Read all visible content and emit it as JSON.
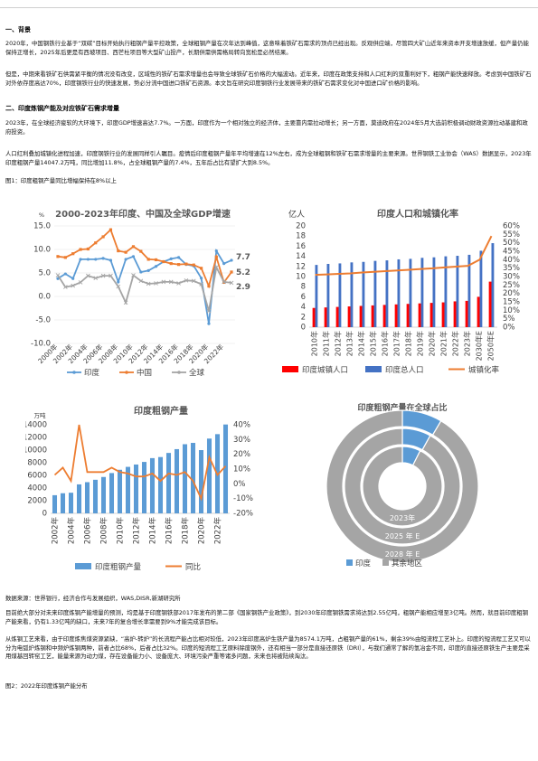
{
  "sections": {
    "s1": "一、背景",
    "s2": "二、印度炼钢产能及对应铁矿石需求增量"
  },
  "paragraphs": {
    "p1": "2020年，中国钢铁行业基于“双碳”目标开始执行粗钢产量平控政策，全球粗钢产量在次年达到峰值，这意味着铁矿石需求的顶点已经出现。反观供应端，尽管四大矿山近年来资本开支增速放缓，但产量仍能保持正增长，2025年后更是有西坡项目、西芒杜项目等大型矿山投产，长期供需供需格局转向宽松是必然结果。",
    "p2": "但是，中期来看铁矿石供需紧平衡的情况没有改变，区域性的铁矿石需求增量也会导致全球铁矿石价格的大幅波动。近年来，印度在政策支持和人口红利的双重利好下，粗钢产能快速释放。考虑到中国铁矿石对外依存度高达70%，印度钢铁行业的快速发展，势必分流中国进口铁矿石资源。本文旨在研究印度钢铁行业发展带来的铁矿石需求变化对中国进口矿价格的影响。",
    "p3": "2023年，在全球经济疲软的大环境下，印度GDP增速高达7.7%。一方面，印度作为一个相对独立的经济体，主要靠内需拉动增长；另一方面，莫迪政府在2024年5月大选前积极调动财政资源拉动基建和政府投资。",
    "p4": "人口红利叠加城镇化进程加速，印度钢铁行业的发展同样引人瞩目。疫情后印度粗钢产量年平均增速在12%左右，成为全球粗钢和铁矿石需求增量的主要来源。世界钢铁工业协会（WAS）数据显示，2023年印度粗钢产量14047.2万吨，同比增加11.8%，占全球粗钢产量的7.4%，五年后占比有望扩大到8.5%。",
    "p5": "目前绝大部分对未来印度炼钢产能增量的预测，均是基于印度钢铁部2017年发布的第二部《国家钢铁产业政策》，到2030年印度钢铁需求将达到2.55亿吨，粗钢产能相应增至3亿吨。然而，就目前印度粗钢产能来看，仍有1.33亿吨的缺口，未来7年的复合增长率需要到9%才能完成该目标。",
    "p6": "从炼钢工艺来看，由于印度炼焦煤资源紧缺，“高炉-转炉”的长流程产能占比相对较低，2023年印度高炉生铁产量为8574.1万吨，占粗钢产量的61%，剩余39%由短流程工艺补上。印度的短流程工艺又可以分为电弧炉炼钢和中频炉炼钢两种，前者占比68%，后者占比32%。印度的短流程工艺原料除废钢外，还有相当一部分是直接还原铁（DRI），与我们通常了解的氢冶金不同，印度的直接还原铁生产主要是采用煤基回转窑工艺，能量来源为动力煤，存在设备能力小、设备庞大、环境污染严重等诸多问题，未来也将被陆续淘汰。"
  },
  "figure_captions": {
    "fig1": "图1：印度粗钢产量同比增幅保持在8%以上",
    "fig2": "图2：2022年印度炼钢产能分布"
  },
  "source_note": "数据来源：世界银行，经济合作与发展组织，WAS,DISR,新湖研究所",
  "chart_data": [
    {
      "type": "line",
      "title": "2000-2023年印度、中国及全球GDP增速",
      "ylabel": "%",
      "ylim": [
        -10,
        15
      ],
      "yticks": [
        "15.0",
        "10.0",
        "5.0",
        "0.0",
        "-5.0",
        "-10.0"
      ],
      "x": [
        "2000年",
        "2001年",
        "2002年",
        "2003年",
        "2004年",
        "2005年",
        "2006年",
        "2007年",
        "2008年",
        "2009年",
        "2010年",
        "2011年",
        "2012年",
        "2013年",
        "2014年",
        "2015年",
        "2016年",
        "2017年",
        "2018年",
        "2019年",
        "2020年",
        "2021年",
        "2022年",
        "2023年"
      ],
      "xtick_labels": [
        "2000年",
        "2002年",
        "2004年",
        "2006年",
        "2008年",
        "2010年",
        "2012年",
        "2014年",
        "2016年",
        "2018年",
        "2020年",
        "2022年"
      ],
      "series": [
        {
          "name": "印度",
          "color": "#5b9bd5",
          "values": [
            3.8,
            4.8,
            3.8,
            7.9,
            7.9,
            7.9,
            8.1,
            7.7,
            3.1,
            7.9,
            8.5,
            5.2,
            5.5,
            6.4,
            7.4,
            8.0,
            8.3,
            6.8,
            6.5,
            3.9,
            -5.8,
            9.7,
            7.0,
            7.7
          ]
        },
        {
          "name": "中国",
          "color": "#ed7d31",
          "values": [
            8.5,
            8.3,
            9.1,
            10.0,
            10.1,
            11.4,
            12.7,
            14.2,
            9.7,
            9.4,
            10.6,
            9.6,
            7.9,
            7.8,
            7.4,
            7.0,
            6.8,
            6.9,
            6.7,
            6.0,
            2.2,
            8.4,
            3.0,
            5.2
          ]
        },
        {
          "name": "全球",
          "color": "#a5a5a5",
          "values": [
            4.5,
            2.0,
            2.3,
            3.0,
            4.4,
            3.9,
            4.4,
            4.4,
            2.1,
            -1.3,
            4.5,
            3.3,
            2.7,
            2.8,
            3.1,
            3.1,
            2.8,
            3.4,
            3.3,
            2.6,
            -3.1,
            6.2,
            3.1,
            2.9
          ]
        }
      ],
      "annotations": [
        "7.7",
        "5.2",
        "2.9"
      ]
    },
    {
      "type": "bar",
      "title": "印度人口和城镇化率",
      "ylabel_left": "亿人",
      "ylim_left": [
        0,
        20
      ],
      "yticks_left": [
        "20",
        "18",
        "16",
        "14",
        "12",
        "10",
        "8",
        "6",
        "4",
        "2",
        "0"
      ],
      "ylim_right": [
        0,
        60
      ],
      "yticks_right": [
        "60%",
        "55%",
        "50%",
        "45%",
        "40%",
        "35%",
        "30%",
        "25%",
        "20%",
        "15%",
        "10%",
        "5%",
        "0%"
      ],
      "categories": [
        "2010年",
        "2011年",
        "2012年",
        "2013年",
        "2014年",
        "2015年",
        "2016年",
        "2017年",
        "2018年",
        "2019年",
        "2020年",
        "2021年",
        "2022年",
        "2023年",
        "2030年E",
        "2050年E"
      ],
      "series": [
        {
          "name": "印度城镇人口",
          "color": "#ff0000",
          "values": [
            3.8,
            3.9,
            4.0,
            4.1,
            4.2,
            4.3,
            4.4,
            4.5,
            4.6,
            4.7,
            4.8,
            4.9,
            5.1,
            5.2,
            6.0,
            9.0
          ]
        },
        {
          "name": "印度总人口",
          "color": "#4472c4",
          "values": [
            12.3,
            12.5,
            12.6,
            12.8,
            12.9,
            13.1,
            13.2,
            13.4,
            13.5,
            13.7,
            13.8,
            14.0,
            14.1,
            14.3,
            15.1,
            16.6
          ]
        },
        {
          "name": "城镇化率",
          "color": "#ed7d31",
          "axis": "right",
          "values": [
            31,
            31.3,
            31.6,
            31.9,
            32.4,
            32.8,
            33.2,
            33.6,
            34.0,
            34.5,
            34.9,
            35.4,
            35.9,
            36.4,
            40,
            54
          ]
        }
      ]
    },
    {
      "type": "bar",
      "title": "印度粗钢产量",
      "ylabel_left": "万吨",
      "ylim_left": [
        0,
        14000
      ],
      "yticks_left": [
        "14000",
        "12000",
        "10000",
        "8000",
        "6000",
        "4000",
        "2000",
        "0"
      ],
      "ylim_right": [
        -20,
        40
      ],
      "yticks_right": [
        "40%",
        "30%",
        "20%",
        "10%",
        "0%",
        "-10%",
        "-20%"
      ],
      "categories": [
        "2002年",
        "2003年",
        "2004年",
        "2005年",
        "2006年",
        "2007年",
        "2008年",
        "2009年",
        "2010年",
        "2011年",
        "2012年",
        "2013年",
        "2014年",
        "2015年",
        "2016年",
        "2017年",
        "2018年",
        "2019年",
        "2020年",
        "2021年",
        "2022年",
        "2023年"
      ],
      "xtick_labels": [
        "2002年",
        "2004年",
        "2006年",
        "2008年",
        "2010年",
        "2012年",
        "2014年",
        "2016年",
        "2018年",
        "2020年",
        "2022年"
      ],
      "series": [
        {
          "name": "印度粗钢产量",
          "color": "#5b9bd5",
          "values": [
            2870,
            3180,
            3260,
            4580,
            4930,
            5310,
            5750,
            6370,
            6890,
            7350,
            7720,
            8130,
            8730,
            8900,
            9550,
            10150,
            10930,
            11140,
            10000,
            11820,
            12520,
            14047
          ]
        },
        {
          "name": "同比",
          "color": "#ed7d31",
          "axis": "right",
          "values": [
            6,
            11,
            2,
            40,
            8,
            8,
            8,
            11,
            8,
            7,
            5,
            5,
            7,
            2,
            7,
            6,
            8,
            2,
            -10,
            18,
            6,
            12
          ]
        }
      ]
    },
    {
      "type": "pie",
      "title": "印度粗钢产量在全球占比",
      "rings": [
        "2023年",
        "2025 年 E",
        "2028 年 E"
      ],
      "series": [
        {
          "name": "印度",
          "color": "#5b9bd5",
          "values": [
            7.4,
            8.0,
            8.5
          ]
        },
        {
          "name": "其余地区",
          "color": "#a5a5a5",
          "values": [
            92.6,
            92.0,
            91.5
          ]
        }
      ]
    }
  ]
}
